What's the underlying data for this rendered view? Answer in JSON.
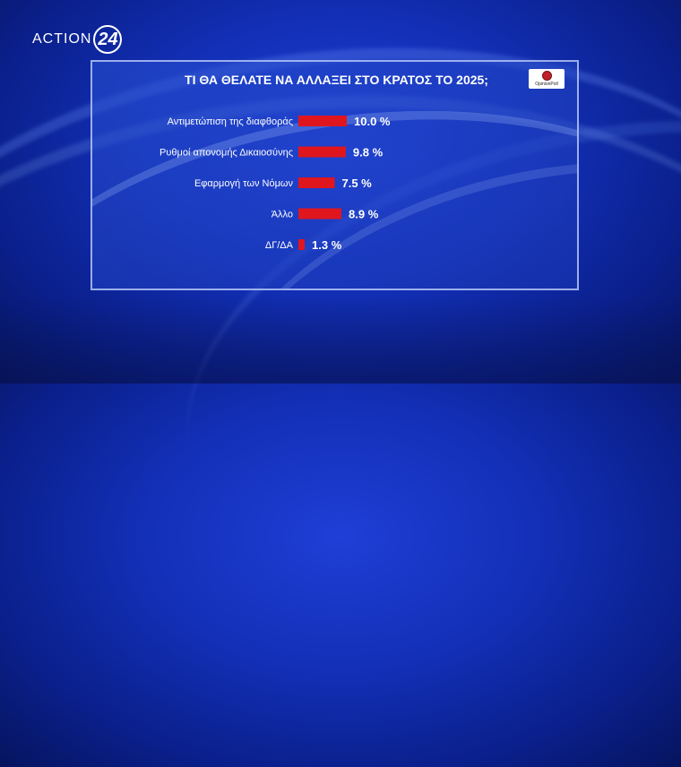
{
  "brand": {
    "logo_text": "ACTION",
    "logo_number": "24"
  },
  "badge": {
    "text": "OpinionPoll",
    "icon": "opinionpoll-logo-icon"
  },
  "colors": {
    "bar": "#e0161e",
    "panel_border": "#c8d7ff",
    "background": "#1330b8"
  },
  "chart_data": {
    "type": "bar",
    "orientation": "horizontal",
    "title": "ΤΙ ΘΑ ΘΕΛΑΤΕ ΝΑ ΑΛΛΑΞΕΙ ΣΤΟ ΚΡΑΤΟΣ ΤΟ 2025;",
    "categories": [
      "Αντιμετώπιση της διαφθοράς",
      "Ρυθμοί απονομής Δικαιοσύνης",
      "Εφαρμογή των Νόμων",
      "Άλλο",
      "ΔΓ/ΔΑ"
    ],
    "values": [
      10.0,
      9.8,
      7.5,
      8.9,
      1.3
    ],
    "value_labels": [
      "10.0 %",
      "9.8 %",
      "7.5 %",
      "8.9 %",
      "1.3 %"
    ],
    "xlim": [
      0,
      10.0
    ],
    "grid": false,
    "legend": "none"
  }
}
